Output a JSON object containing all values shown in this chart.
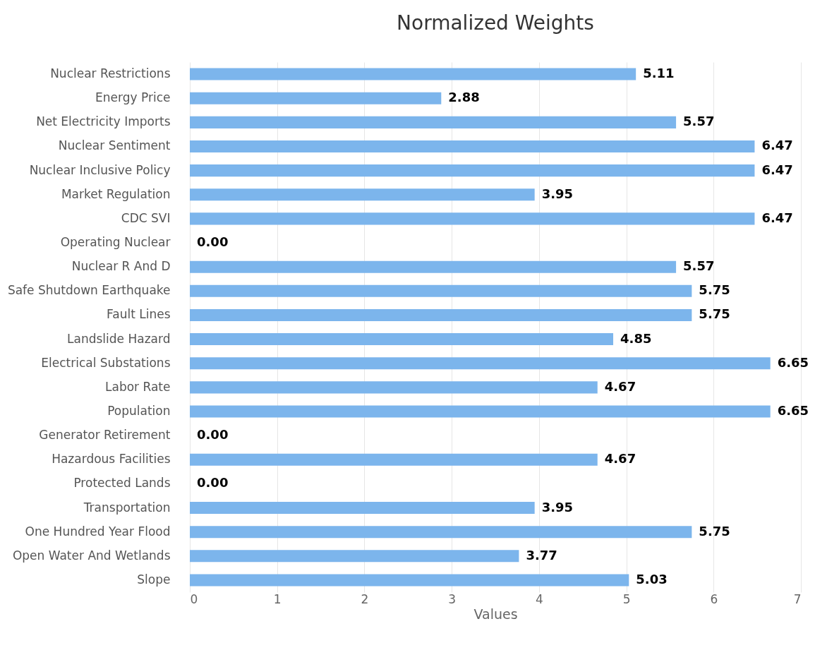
{
  "chart_data": {
    "type": "bar",
    "orientation": "horizontal",
    "title": "Normalized Weights",
    "xlabel": "Values",
    "categories": [
      "Nuclear Restrictions",
      "Energy Price",
      "Net Electricity Imports",
      "Nuclear Sentiment",
      "Nuclear Inclusive Policy",
      "Market Regulation",
      "CDC SVI",
      "Operating Nuclear",
      "Nuclear R And D",
      "Safe Shutdown Earthquake",
      "Fault Lines",
      "Landslide Hazard",
      "Electrical Substations",
      "Labor Rate",
      "Population",
      "Generator Retirement",
      "Hazardous Facilities",
      "Protected Lands",
      "Transportation",
      "One Hundred Year Flood",
      "Open Water And Wetlands",
      "Slope"
    ],
    "values": [
      5.11,
      2.88,
      5.57,
      6.47,
      6.47,
      3.95,
      6.47,
      0,
      5.57,
      5.75,
      5.75,
      4.85,
      6.65,
      4.67,
      6.65,
      0,
      4.67,
      0,
      3.95,
      5.75,
      3.77,
      5.03
    ],
    "color": "#7cb5ec",
    "xlim": [
      0,
      7
    ],
    "xticks": [
      0,
      1,
      2,
      3,
      4,
      5,
      6,
      7
    ],
    "grid": "x",
    "value_labels": [
      "5.11",
      "2.88",
      "5.57",
      "6.47",
      "6.47",
      "3.95",
      "6.47",
      "0.00",
      "5.57",
      "5.75",
      "5.75",
      "4.85",
      "6.65",
      "4.67",
      "6.65",
      "0.00",
      "4.67",
      "0.00",
      "3.95",
      "5.75",
      "3.77",
      "5.03"
    ]
  }
}
